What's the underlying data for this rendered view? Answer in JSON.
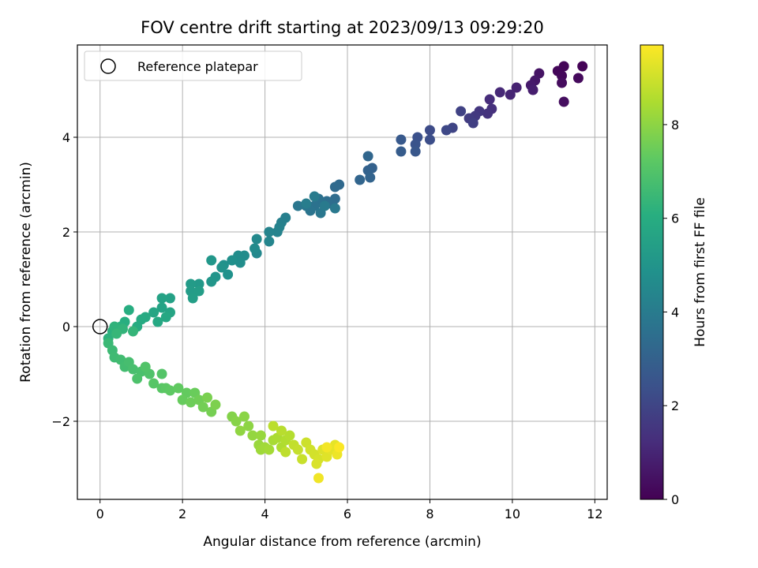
{
  "chart_data": {
    "type": "scatter",
    "title": "FOV centre drift starting at 2023/09/13 09:29:20",
    "xlabel": "Angular distance from reference (arcmin)",
    "ylabel": "Rotation from reference (arcmin)",
    "xlim": [
      -0.55,
      12.3
    ],
    "ylim": [
      -3.65,
      5.95
    ],
    "xticks": [
      0,
      2,
      4,
      6,
      8,
      10,
      12
    ],
    "yticks": [
      -2,
      0,
      2,
      4
    ],
    "grid": true,
    "legend": {
      "placement": "top-left",
      "entries": [
        "Reference platepar"
      ]
    },
    "reference_point": {
      "x": 0,
      "y": 0,
      "label": "Reference platepar"
    },
    "colorbar": {
      "label": "Hours from first FF file",
      "range": [
        0,
        9.7
      ],
      "ticks": [
        0,
        2,
        4,
        6,
        8
      ],
      "colormap": "viridis"
    },
    "series": [
      {
        "points": [
          [
            11.7,
            5.5,
            0.05
          ],
          [
            11.25,
            5.5,
            0.1
          ],
          [
            11.1,
            5.4,
            0.15
          ],
          [
            11.2,
            5.3,
            0.2
          ],
          [
            11.6,
            5.25,
            0.25
          ],
          [
            11.2,
            5.15,
            0.3
          ],
          [
            11.25,
            4.75,
            0.35
          ],
          [
            10.65,
            5.35,
            0.5
          ],
          [
            10.55,
            5.2,
            0.6
          ],
          [
            10.45,
            5.1,
            0.7
          ],
          [
            10.5,
            5.0,
            0.8
          ],
          [
            10.1,
            5.05,
            0.9
          ],
          [
            9.95,
            4.9,
            1.0
          ],
          [
            9.7,
            4.95,
            1.1
          ],
          [
            9.45,
            4.8,
            1.2
          ],
          [
            9.5,
            4.6,
            1.3
          ],
          [
            9.4,
            4.5,
            1.4
          ],
          [
            9.2,
            4.55,
            1.5
          ],
          [
            9.1,
            4.45,
            1.6
          ],
          [
            8.95,
            4.4,
            1.7
          ],
          [
            9.05,
            4.3,
            1.8
          ],
          [
            8.75,
            4.55,
            1.9
          ],
          [
            8.55,
            4.2,
            2.0
          ],
          [
            8.4,
            4.15,
            2.1
          ],
          [
            8.0,
            4.15,
            2.2
          ],
          [
            8.0,
            3.95,
            2.3
          ],
          [
            7.7,
            4.0,
            2.4
          ],
          [
            7.65,
            3.85,
            2.5
          ],
          [
            7.65,
            3.7,
            2.6
          ],
          [
            7.3,
            3.95,
            2.7
          ],
          [
            7.3,
            3.7,
            2.8
          ],
          [
            6.6,
            3.35,
            3.0
          ],
          [
            6.5,
            3.3,
            3.05
          ],
          [
            6.55,
            3.15,
            3.1
          ],
          [
            6.3,
            3.1,
            3.15
          ],
          [
            6.5,
            3.6,
            3.2
          ],
          [
            5.8,
            3.0,
            3.3
          ],
          [
            5.7,
            2.95,
            3.35
          ],
          [
            5.7,
            2.7,
            3.4
          ],
          [
            5.6,
            2.6,
            3.45
          ],
          [
            5.5,
            2.65,
            3.5
          ],
          [
            5.4,
            2.6,
            3.55
          ],
          [
            5.3,
            2.7,
            3.6
          ],
          [
            5.2,
            2.55,
            3.65
          ],
          [
            5.1,
            2.45,
            3.7
          ],
          [
            5.0,
            2.55,
            3.75
          ],
          [
            4.8,
            2.55,
            3.8
          ],
          [
            5.35,
            2.4,
            3.85
          ],
          [
            5.7,
            2.5,
            3.9
          ],
          [
            5.45,
            2.55,
            3.95
          ],
          [
            5.2,
            2.75,
            4.0
          ],
          [
            5.0,
            2.6,
            4.05
          ],
          [
            4.5,
            2.3,
            4.15
          ],
          [
            4.4,
            2.2,
            4.2
          ],
          [
            4.35,
            2.1,
            4.25
          ],
          [
            4.3,
            2.0,
            4.3
          ],
          [
            4.1,
            2.0,
            4.35
          ],
          [
            4.1,
            1.8,
            4.4
          ],
          [
            3.8,
            1.55,
            4.5
          ],
          [
            3.8,
            1.85,
            4.55
          ],
          [
            3.75,
            1.65,
            4.6
          ],
          [
            3.5,
            1.5,
            4.65
          ],
          [
            3.35,
            1.5,
            4.7
          ],
          [
            3.4,
            1.35,
            4.75
          ],
          [
            3.2,
            1.4,
            4.8
          ],
          [
            3.0,
            1.3,
            4.85
          ],
          [
            3.1,
            1.1,
            4.9
          ],
          [
            2.95,
            1.25,
            4.95
          ],
          [
            2.8,
            1.05,
            5.0
          ],
          [
            2.7,
            0.95,
            5.05
          ],
          [
            2.7,
            1.4,
            5.1
          ],
          [
            2.4,
            0.9,
            5.2
          ],
          [
            2.2,
            0.9,
            5.25
          ],
          [
            2.2,
            0.75,
            5.3
          ],
          [
            2.4,
            0.75,
            5.35
          ],
          [
            2.25,
            0.6,
            5.4
          ],
          [
            1.7,
            0.6,
            5.5
          ],
          [
            1.5,
            0.6,
            5.55
          ],
          [
            1.5,
            0.4,
            5.6
          ],
          [
            1.7,
            0.3,
            5.65
          ],
          [
            1.3,
            0.3,
            5.7
          ],
          [
            1.6,
            0.2,
            5.75
          ],
          [
            1.4,
            0.1,
            5.8
          ],
          [
            1.1,
            0.2,
            5.85
          ],
          [
            1.0,
            0.15,
            5.9
          ],
          [
            0.9,
            0.0,
            5.95
          ],
          [
            0.7,
            0.35,
            6.0
          ],
          [
            0.6,
            0.1,
            6.05
          ],
          [
            0.5,
            0.0,
            6.1
          ],
          [
            0.3,
            -0.1,
            6.15
          ],
          [
            0.2,
            -0.25,
            6.2
          ],
          [
            0.35,
            0.0,
            6.25
          ],
          [
            0.55,
            -0.05,
            6.3
          ],
          [
            0.8,
            -0.1,
            6.35
          ],
          [
            0.4,
            -0.15,
            6.4
          ],
          [
            0.2,
            -0.35,
            6.5
          ],
          [
            0.3,
            -0.5,
            6.55
          ],
          [
            0.35,
            -0.65,
            6.6
          ],
          [
            0.5,
            -0.7,
            6.65
          ],
          [
            0.6,
            -0.85,
            6.7
          ],
          [
            0.7,
            -0.75,
            6.75
          ],
          [
            0.8,
            -0.9,
            6.8
          ],
          [
            1.0,
            -0.95,
            6.85
          ],
          [
            0.9,
            -1.1,
            6.9
          ],
          [
            1.2,
            -1.0,
            6.95
          ],
          [
            1.1,
            -0.85,
            7.0
          ],
          [
            1.5,
            -1.0,
            7.05
          ],
          [
            1.3,
            -1.2,
            7.1
          ],
          [
            1.5,
            -1.3,
            7.15
          ],
          [
            1.6,
            -1.3,
            7.2
          ],
          [
            1.7,
            -1.35,
            7.25
          ],
          [
            1.9,
            -1.3,
            7.3
          ],
          [
            2.1,
            -1.4,
            7.35
          ],
          [
            2.0,
            -1.55,
            7.4
          ],
          [
            2.3,
            -1.4,
            7.45
          ],
          [
            2.2,
            -1.6,
            7.5
          ],
          [
            2.4,
            -1.55,
            7.55
          ],
          [
            2.5,
            -1.7,
            7.6
          ],
          [
            2.7,
            -1.8,
            7.65
          ],
          [
            2.6,
            -1.5,
            7.7
          ],
          [
            2.8,
            -1.65,
            7.75
          ],
          [
            3.2,
            -1.9,
            7.85
          ],
          [
            3.3,
            -2.0,
            7.9
          ],
          [
            3.5,
            -1.9,
            7.95
          ],
          [
            3.6,
            -2.1,
            8.0
          ],
          [
            3.4,
            -2.2,
            8.05
          ],
          [
            3.7,
            -2.3,
            8.1
          ],
          [
            3.9,
            -2.3,
            8.15
          ],
          [
            3.85,
            -2.5,
            8.2
          ],
          [
            3.9,
            -2.6,
            8.25
          ],
          [
            4.0,
            -2.55,
            8.3
          ],
          [
            4.1,
            -2.6,
            8.35
          ],
          [
            4.2,
            -2.4,
            8.4
          ],
          [
            4.3,
            -2.35,
            8.45
          ],
          [
            4.4,
            -2.55,
            8.5
          ],
          [
            4.5,
            -2.4,
            8.55
          ],
          [
            4.6,
            -2.3,
            8.6
          ],
          [
            4.4,
            -2.2,
            8.65
          ],
          [
            4.2,
            -2.1,
            8.7
          ],
          [
            4.5,
            -2.65,
            8.75
          ],
          [
            4.7,
            -2.5,
            8.8
          ],
          [
            4.8,
            -2.6,
            8.85
          ],
          [
            4.9,
            -2.8,
            8.9
          ],
          [
            5.0,
            -2.45,
            8.95
          ],
          [
            5.1,
            -2.6,
            9.0
          ],
          [
            5.2,
            -2.7,
            9.05
          ],
          [
            5.3,
            -2.8,
            9.1
          ],
          [
            5.25,
            -2.9,
            9.15
          ],
          [
            5.4,
            -2.6,
            9.2
          ],
          [
            5.5,
            -2.75,
            9.25
          ],
          [
            5.6,
            -2.6,
            9.3
          ],
          [
            5.7,
            -2.5,
            9.35
          ],
          [
            5.75,
            -2.7,
            9.45
          ],
          [
            5.3,
            -3.2,
            9.5
          ],
          [
            5.5,
            -2.55,
            9.55
          ],
          [
            5.8,
            -2.55,
            9.65
          ]
        ]
      }
    ]
  }
}
